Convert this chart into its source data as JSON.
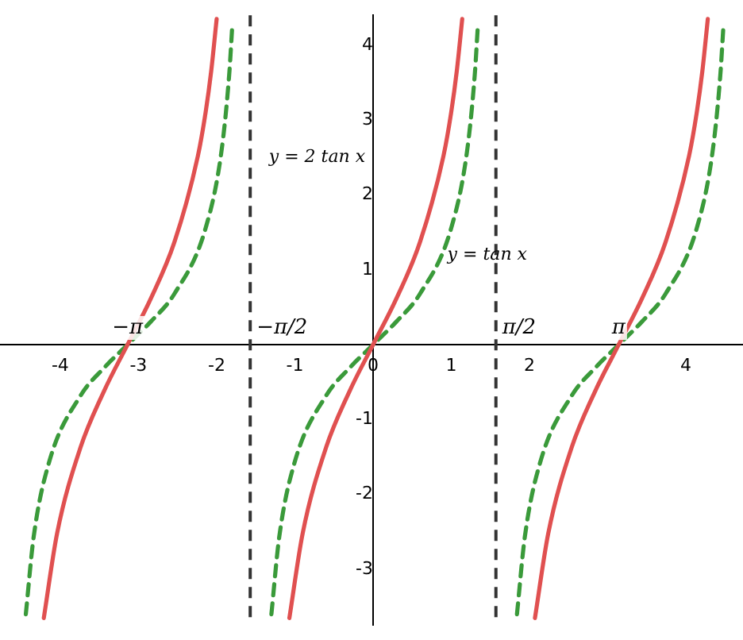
{
  "chart_data": {
    "type": "line",
    "xlim": [
      -4.77,
      4.73
    ],
    "ylim": [
      -3.74,
      4.4
    ],
    "xticks": [
      -4,
      -3,
      -2,
      -1,
      {
        "value": 0,
        "label": "0"
      },
      1,
      2,
      {
        "value": 3,
        "label": null
      },
      4
    ],
    "yticks": [
      -3,
      -2,
      -1,
      1,
      2,
      3,
      4
    ],
    "grid": false,
    "legend": false,
    "marker": "none",
    "series": [
      {
        "color": "#e05050",
        "line_style": "solid",
        "x": [
          -4.21,
          -4.04,
          -3.74,
          -3.44,
          -3.14,
          -2.84,
          -2.54,
          -2.24,
          -2.14,
          -2.07,
          -2.0,
          null,
          -1.07,
          -0.9,
          -0.6,
          -0.3,
          0,
          0.3,
          0.6,
          0.9,
          1.0,
          1.07,
          1.14,
          null,
          2.07,
          2.24,
          2.54,
          2.84,
          3.14,
          3.44,
          3.74,
          4.04,
          4.14,
          4.21,
          4.28
        ],
        "values": [
          -3.65,
          -2.52,
          -1.37,
          -0.62,
          0,
          0.62,
          1.37,
          2.52,
          3.11,
          3.65,
          4.35,
          null,
          -3.65,
          -2.52,
          -1.37,
          -0.62,
          0,
          0.62,
          1.37,
          2.52,
          3.11,
          3.65,
          4.35,
          null,
          -3.65,
          -2.52,
          -1.37,
          -0.62,
          0,
          0.62,
          1.37,
          2.52,
          3.11,
          3.65,
          4.35
        ]
      },
      {
        "color": "#3a9a3a",
        "line_style": "dashed",
        "x": [
          -4.44,
          -4.34,
          -4.14,
          -3.74,
          -3.44,
          -3.14,
          -2.84,
          -2.54,
          -2.14,
          -1.94,
          -1.84,
          -1.8,
          null,
          -1.3,
          -1.2,
          -1.0,
          -0.6,
          -0.3,
          0,
          0.3,
          0.6,
          1.0,
          1.2,
          1.3,
          1.34,
          null,
          1.84,
          1.94,
          2.14,
          2.54,
          2.84,
          3.14,
          3.44,
          3.74,
          4.14,
          4.34,
          4.44,
          4.48
        ],
        "values": [
          -3.6,
          -2.57,
          -1.56,
          -0.68,
          -0.31,
          0,
          0.31,
          0.68,
          1.56,
          2.57,
          3.6,
          4.26,
          null,
          -3.6,
          -2.57,
          -1.56,
          -0.68,
          -0.31,
          0,
          0.31,
          0.68,
          1.56,
          2.57,
          3.6,
          4.26,
          null,
          -3.6,
          -2.57,
          -1.56,
          -0.68,
          -0.31,
          0,
          0.31,
          0.68,
          1.56,
          2.57,
          3.6,
          4.26
        ]
      }
    ],
    "ref_lines": [
      {
        "axis": "x",
        "value": -1.5708,
        "label": "−π/2",
        "color": "#333333",
        "line_style": "dashed"
      },
      {
        "axis": "x",
        "value": 1.5708,
        "label": "π/2",
        "color": "#333333",
        "line_style": "dashed"
      }
    ],
    "annotations": [
      {
        "text": "−π",
        "x": -3.14,
        "y": 0
      },
      {
        "text": "π",
        "x": 3.14,
        "y": 0
      },
      "y = 2 tan x",
      "y = tan x"
    ]
  }
}
